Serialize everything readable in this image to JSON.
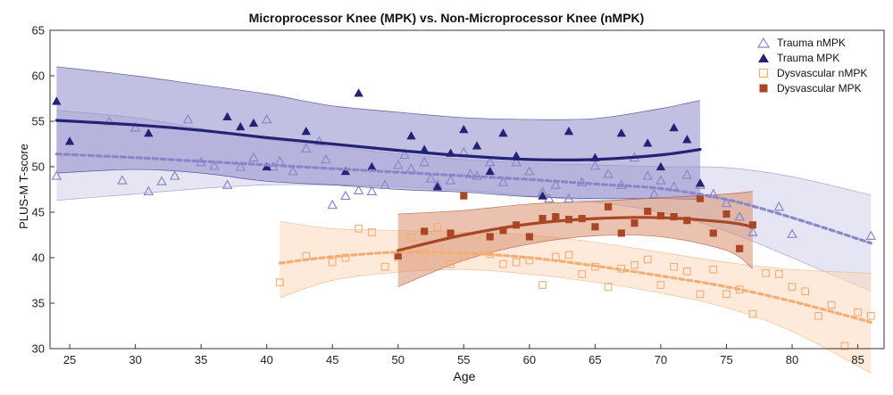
{
  "chart_data": {
    "type": "scatter",
    "title": "Microprocessor Knee (MPK) vs. Non-Microprocessor Knee (nMPK)",
    "xlabel": "Age",
    "ylabel": "PLUS-M T-score",
    "xlim": [
      23.5,
      87
    ],
    "ylim": [
      30,
      65
    ],
    "xticks": [
      25,
      30,
      35,
      40,
      45,
      50,
      55,
      60,
      65,
      70,
      75,
      80,
      85
    ],
    "yticks": [
      30,
      35,
      40,
      45,
      50,
      55,
      60,
      65
    ],
    "legend_position": "top-right",
    "grid": false,
    "series": [
      {
        "name": "Trauma nMPK",
        "marker": "triangle-open",
        "color": "#8a87c8",
        "points": [
          [
            24,
            49
          ],
          [
            28,
            55
          ],
          [
            29,
            48.5
          ],
          [
            30,
            54.3
          ],
          [
            31,
            47.3
          ],
          [
            32,
            48.4
          ],
          [
            33,
            49
          ],
          [
            34,
            55.2
          ],
          [
            35,
            50.5
          ],
          [
            36,
            50.1
          ],
          [
            37,
            48
          ],
          [
            38,
            50
          ],
          [
            39,
            51
          ],
          [
            40,
            55.2
          ],
          [
            40.5,
            50
          ],
          [
            41,
            50.6
          ],
          [
            42,
            49.5
          ],
          [
            43,
            52
          ],
          [
            44,
            52.8
          ],
          [
            44.5,
            50.8
          ],
          [
            45,
            45.8
          ],
          [
            46,
            46.8
          ],
          [
            47,
            47.4
          ],
          [
            48,
            47.3
          ],
          [
            49,
            48
          ],
          [
            50,
            50.2
          ],
          [
            50.5,
            51.3
          ],
          [
            51,
            49.8
          ],
          [
            52,
            50.5
          ],
          [
            52.5,
            48.7
          ],
          [
            53,
            48
          ],
          [
            54,
            48.5
          ],
          [
            55,
            51.6
          ],
          [
            55.5,
            49.2
          ],
          [
            56,
            49
          ],
          [
            57,
            50.5
          ],
          [
            58,
            48.3
          ],
          [
            59,
            50.5
          ],
          [
            60,
            49.5
          ],
          [
            61,
            47.2
          ],
          [
            61.5,
            46.5
          ],
          [
            62,
            48
          ],
          [
            63,
            46.5
          ],
          [
            64,
            48.3
          ],
          [
            65,
            50.1
          ],
          [
            66,
            49.2
          ],
          [
            67,
            48
          ],
          [
            68,
            51
          ],
          [
            69,
            49
          ],
          [
            69.5,
            47
          ],
          [
            70,
            48.5
          ],
          [
            71,
            47.8
          ],
          [
            72,
            49.1
          ],
          [
            73,
            48
          ],
          [
            74,
            47
          ],
          [
            75,
            46
          ],
          [
            76,
            44.5
          ],
          [
            77,
            42.8
          ],
          [
            79,
            45.6
          ],
          [
            80,
            42.6
          ],
          [
            86,
            42.4
          ]
        ]
      },
      {
        "name": "Trauma MPK",
        "marker": "triangle-filled",
        "color": "#232376",
        "points": [
          [
            24,
            57.2
          ],
          [
            25,
            52.8
          ],
          [
            31,
            53.7
          ],
          [
            37,
            55.5
          ],
          [
            38,
            54.4
          ],
          [
            39,
            54.8
          ],
          [
            40,
            50
          ],
          [
            43,
            53.9
          ],
          [
            46,
            49.5
          ],
          [
            47,
            58.1
          ],
          [
            48,
            50
          ],
          [
            51,
            53.4
          ],
          [
            52,
            51.9
          ],
          [
            53,
            47.8
          ],
          [
            54,
            51.5
          ],
          [
            55,
            54.1
          ],
          [
            56,
            52.3
          ],
          [
            57,
            49.5
          ],
          [
            58,
            53.7
          ],
          [
            59,
            51.2
          ],
          [
            61,
            46.8
          ],
          [
            63,
            53.9
          ],
          [
            65,
            51
          ],
          [
            67,
            53.7
          ],
          [
            69,
            52.6
          ],
          [
            70,
            50
          ],
          [
            71,
            54.3
          ],
          [
            72,
            53
          ],
          [
            73,
            48.2
          ]
        ]
      },
      {
        "name": "Dysvascular nMPK",
        "marker": "square-open",
        "color": "#f5ad73",
        "points": [
          [
            41,
            37.3
          ],
          [
            43,
            40.2
          ],
          [
            45,
            39.5
          ],
          [
            46,
            40
          ],
          [
            47,
            43.2
          ],
          [
            48,
            42.8
          ],
          [
            49,
            39
          ],
          [
            50,
            40
          ],
          [
            51,
            42.2
          ],
          [
            52,
            40.5
          ],
          [
            53,
            43.4
          ],
          [
            54,
            39.3
          ],
          [
            55,
            40.1
          ],
          [
            56,
            42.5
          ],
          [
            57,
            40.4
          ],
          [
            58,
            39.3
          ],
          [
            59,
            39.5
          ],
          [
            60,
            39.7
          ],
          [
            61,
            37
          ],
          [
            62,
            40.1
          ],
          [
            63,
            40.3
          ],
          [
            64,
            38.2
          ],
          [
            65,
            39
          ],
          [
            66,
            36.8
          ],
          [
            67,
            38.8
          ],
          [
            68,
            39.2
          ],
          [
            69,
            39.8
          ],
          [
            70,
            37
          ],
          [
            71,
            39
          ],
          [
            72,
            38.5
          ],
          [
            73,
            36
          ],
          [
            74,
            38.7
          ],
          [
            75,
            36
          ],
          [
            76,
            36.5
          ],
          [
            77,
            33.8
          ],
          [
            78,
            38.3
          ],
          [
            79,
            38.2
          ],
          [
            80,
            36.8
          ],
          [
            81,
            36.3
          ],
          [
            82,
            33.6
          ],
          [
            83,
            34.8
          ],
          [
            84,
            30.3
          ],
          [
            85,
            34
          ],
          [
            86,
            33.6
          ]
        ]
      },
      {
        "name": "Dysvascular MPK",
        "marker": "square-filled",
        "color": "#a84626",
        "points": [
          [
            50,
            40.2
          ],
          [
            52,
            42.9
          ],
          [
            54,
            42.7
          ],
          [
            55,
            46.8
          ],
          [
            57,
            42.3
          ],
          [
            58,
            43
          ],
          [
            59,
            43.6
          ],
          [
            60,
            42.3
          ],
          [
            61,
            44.3
          ],
          [
            62,
            44.5
          ],
          [
            63,
            44.2
          ],
          [
            64,
            44.3
          ],
          [
            65,
            43.4
          ],
          [
            66,
            45.6
          ],
          [
            67,
            42.7
          ],
          [
            68,
            43.8
          ],
          [
            69,
            45.1
          ],
          [
            70,
            44.6
          ],
          [
            71,
            44.5
          ],
          [
            72,
            44.1
          ],
          [
            73,
            46.5
          ],
          [
            74,
            42.7
          ],
          [
            75,
            44.8
          ],
          [
            76,
            41
          ],
          [
            77,
            43.6
          ]
        ]
      }
    ],
    "fits": [
      {
        "series": "Trauma nMPK",
        "style": "dashed",
        "color": "#8a87c8",
        "band_color": "#cfcfeb",
        "x": [
          24,
          30,
          35,
          40,
          45,
          50,
          55,
          60,
          65,
          70,
          75,
          80,
          86
        ],
        "y": [
          51.4,
          51,
          50.6,
          50.2,
          49.8,
          49.4,
          49,
          48.6,
          48.1,
          47.6,
          46.4,
          44.4,
          41.6
        ],
        "lower": [
          46.3,
          47,
          47.6,
          48,
          48,
          47.8,
          47.4,
          46.8,
          46.1,
          45,
          42.9,
          40,
          36.3
        ],
        "upper": [
          56.2,
          55.4,
          54.2,
          53,
          52.2,
          51.4,
          50.8,
          50.4,
          50.2,
          50,
          49.9,
          48.9,
          46.9
        ]
      },
      {
        "series": "Trauma MPK",
        "style": "solid",
        "color": "#232376",
        "band_color": "#8f8cca",
        "x": [
          24,
          30,
          35,
          40,
          45,
          50,
          55,
          60,
          65,
          70,
          73
        ],
        "y": [
          55.1,
          54.6,
          54,
          53.2,
          52.5,
          51.8,
          51.2,
          50.8,
          50.8,
          51.3,
          51.9
        ],
        "lower": [
          49.3,
          49.7,
          49.3,
          48.4,
          48,
          47.5,
          47.2,
          46.7,
          46.5,
          46.5,
          46.4
        ],
        "upper": [
          61,
          60,
          59,
          58,
          56.7,
          56,
          55.4,
          55.2,
          55.3,
          56.4,
          57.3
        ]
      },
      {
        "series": "Dysvascular nMPK",
        "style": "dashed",
        "color": "#f5ad73",
        "band_color": "#fcd9bd",
        "x": [
          41,
          45,
          50,
          55,
          60,
          65,
          70,
          75,
          80,
          86
        ],
        "y": [
          39.4,
          40.1,
          40.6,
          40.5,
          40,
          39.1,
          38,
          36.8,
          35.2,
          32.9
        ],
        "lower": [
          35.6,
          37.5,
          38.4,
          38.7,
          38.2,
          37.3,
          36.1,
          34.5,
          31.9,
          27.3
        ],
        "upper": [
          44,
          43.2,
          43,
          42.8,
          42.5,
          41.7,
          40.6,
          39.5,
          38.7,
          38.3
        ]
      },
      {
        "series": "Dysvascular MPK",
        "style": "solid",
        "color": "#a84626",
        "band_color": "#d8906d",
        "x": [
          50,
          55,
          60,
          65,
          70,
          75,
          77
        ],
        "y": [
          40.8,
          42.5,
          43.7,
          44.3,
          44.4,
          43.9,
          43.4
        ],
        "lower": [
          36.8,
          39.7,
          41.5,
          42.4,
          42.3,
          40.8,
          38.8
        ],
        "upper": [
          44.8,
          45.2,
          45.9,
          46.2,
          46.6,
          47,
          47.3
        ]
      }
    ]
  }
}
